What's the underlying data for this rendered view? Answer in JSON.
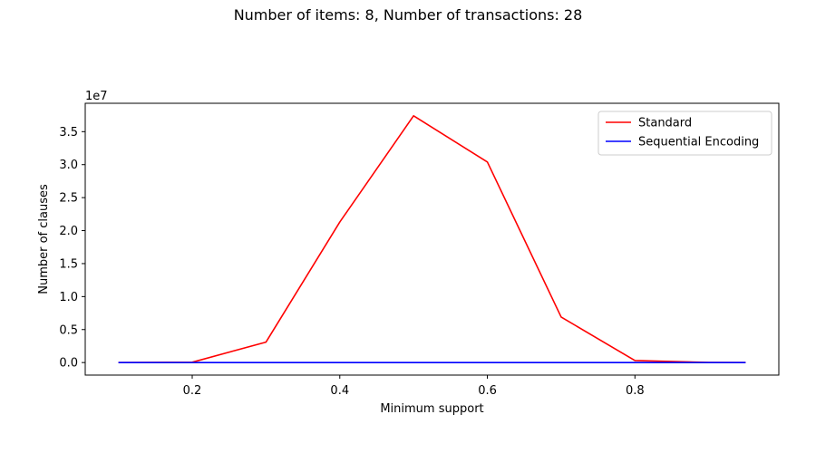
{
  "chart_data": {
    "type": "line",
    "title": "Number of items: 8, Number of transactions: 28",
    "xlabel": "Minimum support",
    "ylabel": "Number of clauses",
    "y_multiplier_label": "1e7",
    "y_scale": 10000000,
    "xlim": [
      0.055,
      0.995
    ],
    "ylim": [
      -1900000,
      39300000
    ],
    "x_ticks": [
      0.2,
      0.4,
      0.6,
      0.8
    ],
    "x_tick_labels": [
      "0.2",
      "0.4",
      "0.6",
      "0.8"
    ],
    "y_ticks": [
      0,
      5000000,
      10000000,
      15000000,
      20000000,
      25000000,
      30000000,
      35000000
    ],
    "y_tick_labels": [
      "0.0",
      "0.5",
      "1.0",
      "1.5",
      "2.0",
      "2.5",
      "3.0",
      "3.5"
    ],
    "grid": false,
    "legend_position": "top-right",
    "x": [
      0.1,
      0.2,
      0.3,
      0.4,
      0.5,
      0.6,
      0.7,
      0.8,
      0.9,
      0.95
    ],
    "series": [
      {
        "name": "Standard",
        "color": "#ff0000",
        "values": [
          0,
          50000,
          3100000,
          21300000,
          37400000,
          30400000,
          6900000,
          300000,
          20000,
          0
        ]
      },
      {
        "name": "Sequential Encoding",
        "color": "#0000ff",
        "values": [
          0,
          0,
          0,
          0,
          0,
          0,
          0,
          0,
          0,
          0
        ]
      }
    ]
  }
}
